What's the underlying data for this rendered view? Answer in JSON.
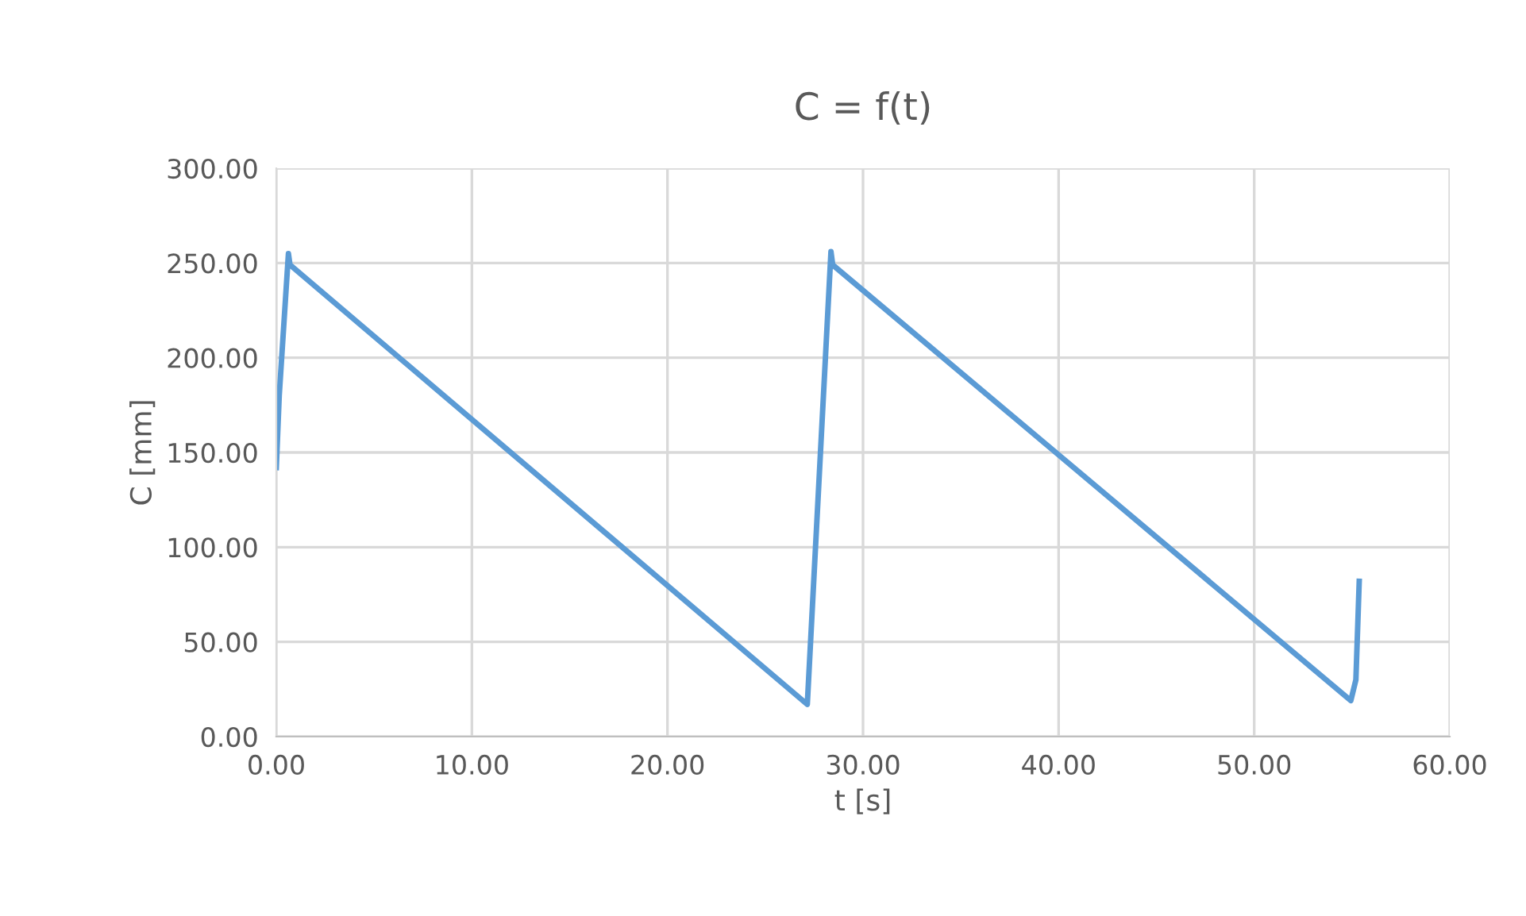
{
  "chart_data": {
    "type": "line",
    "title": "C = f(t)",
    "xlabel": "t [s]",
    "ylabel": "C [mm]",
    "series": [
      {
        "color": "#5b9bd5",
        "x": [
          0.0,
          0.15,
          0.62,
          0.7,
          27.15,
          28.36,
          28.45,
          54.94,
          55.2,
          55.37
        ],
        "values": [
          142,
          180,
          255,
          249,
          17,
          256,
          249,
          19,
          30,
          82
        ]
      }
    ],
    "xlim": [
      0,
      60
    ],
    "ylim": [
      0,
      300
    ],
    "xticks": [
      {
        "value": 0,
        "label": "0.00"
      },
      {
        "value": 10,
        "label": "10.00"
      },
      {
        "value": 20,
        "label": "20.00"
      },
      {
        "value": 30,
        "label": "30.00"
      },
      {
        "value": 40,
        "label": "40.00"
      },
      {
        "value": 50,
        "label": "50.00"
      },
      {
        "value": 60,
        "label": "60.00"
      }
    ],
    "yticks": [
      {
        "value": 0,
        "label": "0.00"
      },
      {
        "value": 50,
        "label": "50.00"
      },
      {
        "value": 100,
        "label": "100.00"
      },
      {
        "value": 150,
        "label": "150.00"
      },
      {
        "value": 200,
        "label": "200.00"
      },
      {
        "value": 250,
        "label": "250.00"
      },
      {
        "value": 300,
        "label": "300.00"
      }
    ],
    "grid": true,
    "marker": "none",
    "line_style": "solid"
  }
}
